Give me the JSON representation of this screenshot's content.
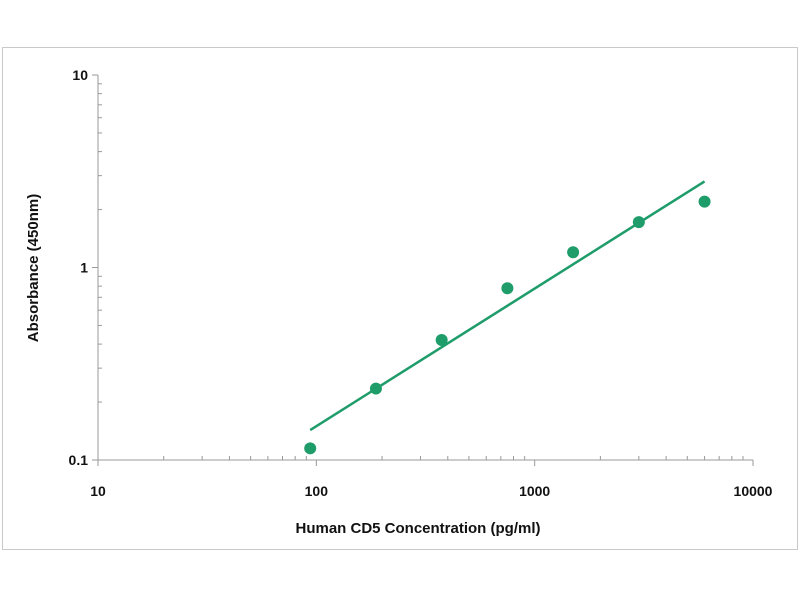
{
  "chart_data": {
    "type": "scatter",
    "title": "",
    "xlabel": "Human CD5 Concentration (pg/ml)",
    "ylabel": "Absorbance (450nm)",
    "x_scale": "log",
    "y_scale": "log",
    "xlim": [
      10,
      10000
    ],
    "ylim": [
      0.1,
      10
    ],
    "x_ticks": [
      "10",
      "100",
      "1000",
      "10000"
    ],
    "y_ticks": [
      "0.1",
      "1",
      "10"
    ],
    "grid": false,
    "legend": "none",
    "series": [
      {
        "color": "#1e9c6a",
        "x": [
          93.75,
          187.5,
          375,
          750,
          1500,
          3000,
          6000
        ],
        "y": [
          0.115,
          0.235,
          0.42,
          0.78,
          1.2,
          1.72,
          2.2
        ]
      }
    ],
    "fit_line": {
      "color": "#1e9c6a",
      "x": [
        93.75,
        6000
      ],
      "y": [
        0.143,
        2.8
      ]
    }
  }
}
